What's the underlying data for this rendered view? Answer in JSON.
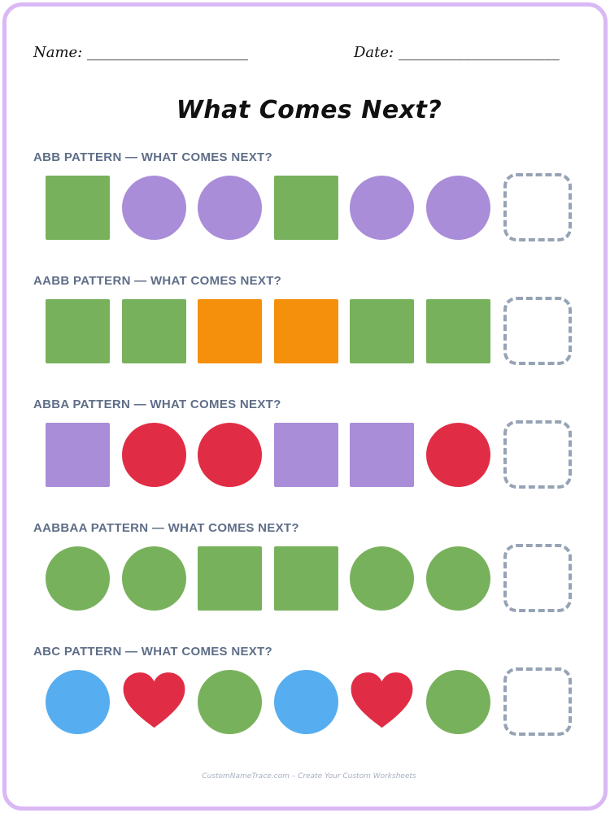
{
  "header": {
    "name_label": "Name: ______________________",
    "date_label": "Date: ______________________"
  },
  "title": "What Comes Next?",
  "colors": {
    "green": "#78b15c",
    "purple": "#a98dd8",
    "orange": "#f5900d",
    "red": "#e02d45",
    "blue": "#56adef",
    "answer_border": "#96a3b5",
    "label": "#5f6e88",
    "page_border": "#d9b8f5"
  },
  "patterns": [
    {
      "label": "ABB PATTERN — WHAT COMES NEXT?",
      "shapes": [
        {
          "shape": "square",
          "color": "green"
        },
        {
          "shape": "circle",
          "color": "purple"
        },
        {
          "shape": "circle",
          "color": "purple"
        },
        {
          "shape": "square",
          "color": "green"
        },
        {
          "shape": "circle",
          "color": "purple"
        },
        {
          "shape": "circle",
          "color": "purple"
        }
      ]
    },
    {
      "label": "AABB PATTERN — WHAT COMES NEXT?",
      "shapes": [
        {
          "shape": "square",
          "color": "green"
        },
        {
          "shape": "square",
          "color": "green"
        },
        {
          "shape": "square",
          "color": "orange"
        },
        {
          "shape": "square",
          "color": "orange"
        },
        {
          "shape": "square",
          "color": "green"
        },
        {
          "shape": "square",
          "color": "green"
        }
      ]
    },
    {
      "label": "ABBA PATTERN — WHAT COMES NEXT?",
      "shapes": [
        {
          "shape": "square",
          "color": "purple"
        },
        {
          "shape": "circle",
          "color": "red"
        },
        {
          "shape": "circle",
          "color": "red"
        },
        {
          "shape": "square",
          "color": "purple"
        },
        {
          "shape": "square",
          "color": "purple"
        },
        {
          "shape": "circle",
          "color": "red"
        }
      ]
    },
    {
      "label": "AABBAA PATTERN — WHAT COMES NEXT?",
      "shapes": [
        {
          "shape": "circle",
          "color": "green"
        },
        {
          "shape": "circle",
          "color": "green"
        },
        {
          "shape": "square",
          "color": "green"
        },
        {
          "shape": "square",
          "color": "green"
        },
        {
          "shape": "circle",
          "color": "green"
        },
        {
          "shape": "circle",
          "color": "green"
        }
      ]
    },
    {
      "label": "ABC PATTERN — WHAT COMES NEXT?",
      "shapes": [
        {
          "shape": "circle",
          "color": "blue"
        },
        {
          "shape": "heart",
          "color": "red"
        },
        {
          "shape": "circle",
          "color": "green"
        },
        {
          "shape": "circle",
          "color": "blue"
        },
        {
          "shape": "heart",
          "color": "red"
        },
        {
          "shape": "circle",
          "color": "green"
        }
      ]
    }
  ],
  "footer": "CustomNameTrace.com – Create Your Custom Worksheets"
}
